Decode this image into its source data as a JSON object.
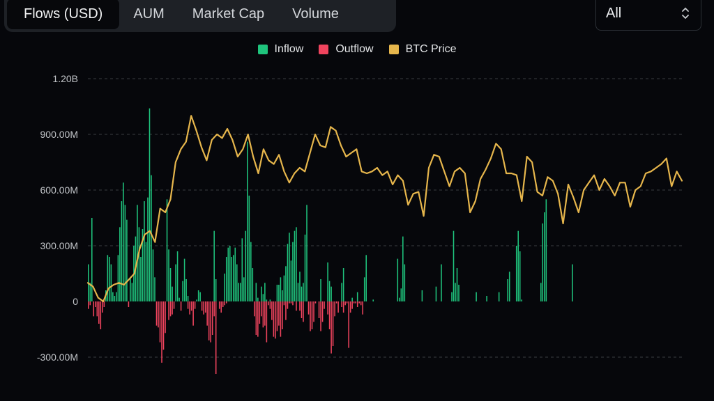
{
  "tabs": [
    {
      "label": "Flows (USD)",
      "active": true
    },
    {
      "label": "AUM",
      "active": false
    },
    {
      "label": "Market Cap",
      "active": false
    },
    {
      "label": "Volume",
      "active": false
    }
  ],
  "range_select": {
    "value": "All",
    "icon": "chevron-up-down-icon"
  },
  "colors": {
    "inflow": "#1fc47d",
    "outflow": "#f0445e",
    "price": "#e6b64c",
    "grid": "#3a3d42"
  },
  "chart_data": {
    "type": "bar",
    "legend": [
      "Inflow",
      "Outflow",
      "BTC Price"
    ],
    "legend_position": "top-center",
    "grid": true,
    "ylim": [
      -400000000,
      1200000000
    ],
    "y_ticks": [
      {
        "value": 1200000000,
        "label": "1.20B"
      },
      {
        "value": 900000000,
        "label": "900.00M"
      },
      {
        "value": 600000000,
        "label": "600.00M"
      },
      {
        "value": 300000000,
        "label": "300.00M"
      },
      {
        "value": 0,
        "label": "0"
      },
      {
        "value": -300000000,
        "label": "-300.00M"
      }
    ],
    "series": [
      {
        "name": "Inflow",
        "values": [
          200,
          100,
          450,
          0,
          0,
          0,
          0,
          0,
          0,
          0,
          60,
          250,
          240,
          200,
          50,
          30,
          50,
          250,
          400,
          540,
          640,
          520,
          440,
          0,
          130,
          100,
          300,
          350,
          520,
          400,
          240,
          390,
          540,
          320,
          560,
          1040,
          680,
          280,
          130,
          0,
          0,
          0,
          0,
          0,
          0,
          550,
          280,
          180,
          80,
          0,
          200,
          270,
          20,
          0,
          110,
          230,
          120,
          30,
          0,
          0,
          0,
          0,
          10,
          60,
          50,
          0,
          0,
          0,
          0,
          0,
          0,
          0,
          380,
          120,
          0,
          0,
          0,
          0,
          150,
          240,
          290,
          300,
          240,
          250,
          290,
          200,
          100,
          100,
          340,
          130,
          380,
          860,
          570,
          320,
          180,
          0,
          100,
          20,
          0,
          80,
          40,
          100,
          10,
          0,
          10,
          0,
          0,
          0,
          90,
          90,
          130,
          60,
          140,
          190,
          310,
          370,
          220,
          320,
          380,
          400,
          100,
          160,
          80,
          100,
          360,
          520,
          0,
          0,
          0,
          0,
          0,
          0,
          0,
          120,
          0,
          0,
          0,
          210,
          110,
          80,
          0,
          0,
          0,
          0,
          0,
          100,
          180,
          0,
          0,
          0,
          0,
          20,
          0,
          0,
          50,
          0,
          0,
          0,
          130,
          250,
          0,
          0,
          0,
          10,
          0,
          0,
          0,
          0,
          0,
          0,
          0,
          0,
          0,
          0,
          0,
          0,
          0,
          230,
          20,
          70,
          350,
          200,
          0,
          0,
          0,
          0,
          0,
          0,
          0,
          0,
          0,
          60,
          0,
          0,
          0,
          0,
          0,
          0,
          0,
          80,
          0,
          0,
          200,
          0,
          0,
          0,
          0,
          0,
          50,
          380,
          100,
          180,
          90,
          0,
          0,
          0,
          0,
          0,
          0,
          0,
          0,
          0,
          50,
          0,
          0,
          0,
          0,
          0,
          30,
          0,
          0,
          0,
          0,
          0,
          0,
          50,
          0,
          0,
          0,
          0,
          120,
          160,
          0,
          0,
          0,
          300,
          380,
          270,
          10,
          0,
          0,
          0,
          0,
          0,
          0,
          0,
          0,
          0,
          0,
          100,
          420,
          480,
          550,
          0,
          0,
          0,
          0,
          0,
          0,
          0,
          0,
          0,
          0,
          0,
          0,
          0,
          0,
          200,
          0,
          0,
          0,
          0,
          0,
          0,
          0,
          0,
          0,
          0,
          0,
          0,
          0,
          0,
          0,
          0,
          0,
          0,
          0,
          0,
          0,
          0,
          0,
          0,
          0,
          0,
          0,
          0,
          0,
          0,
          0,
          0,
          0,
          0,
          0,
          0,
          0,
          0,
          0,
          0,
          0,
          0,
          0,
          0,
          0,
          0,
          0,
          0,
          0,
          0,
          0,
          0,
          0,
          0,
          0,
          0,
          0,
          0,
          0,
          0,
          0,
          0
        ]
      },
      {
        "name": "Outflow",
        "values": [
          -40,
          -20,
          0,
          -80,
          -30,
          -80,
          -120,
          -150,
          -60,
          -30,
          0,
          0,
          0,
          0,
          0,
          0,
          0,
          0,
          0,
          0,
          0,
          0,
          0,
          -30,
          0,
          0,
          0,
          0,
          0,
          0,
          0,
          0,
          0,
          0,
          0,
          0,
          0,
          0,
          0,
          -130,
          -140,
          -220,
          -330,
          -260,
          -170,
          0,
          -100,
          -80,
          -70,
          -40,
          0,
          0,
          0,
          -50,
          0,
          0,
          0,
          -40,
          -70,
          -50,
          -130,
          -40,
          0,
          0,
          0,
          -50,
          -70,
          -60,
          -130,
          -210,
          -220,
          -180,
          -80,
          -390,
          0,
          -40,
          -60,
          -30,
          -20,
          -10,
          0,
          0,
          0,
          0,
          0,
          0,
          0,
          0,
          0,
          0,
          0,
          0,
          0,
          0,
          0,
          -80,
          -180,
          -190,
          -120,
          -80,
          -140,
          -130,
          -220,
          -20,
          -40,
          -100,
          -190,
          -200,
          -160,
          -130,
          -190,
          -150,
          -20,
          -100,
          -40,
          -10,
          -10,
          -20,
          0,
          -50,
          0,
          -50,
          -90,
          -110,
          0,
          0,
          -70,
          -160,
          -150,
          -110,
          -10,
          0,
          -90,
          -160,
          -110,
          -40,
          0,
          -70,
          -150,
          -280,
          -240,
          -80,
          -10,
          -60,
          0,
          -30,
          -60,
          -20,
          -10,
          -250,
          -60,
          -40,
          -10,
          -10,
          -30,
          -10,
          -20,
          -70,
          0,
          0,
          0,
          0,
          0,
          0,
          0,
          0,
          0,
          0,
          0,
          0,
          0,
          0,
          0,
          0,
          0,
          0,
          0,
          0,
          0,
          0,
          0,
          0,
          0,
          0,
          0,
          0,
          0,
          0,
          0,
          0,
          0,
          0,
          0,
          0,
          0,
          0,
          0,
          0,
          0,
          0,
          0,
          0,
          0,
          0,
          0,
          0,
          0,
          0,
          0,
          0,
          0,
          0,
          0,
          0,
          0,
          0,
          0,
          0,
          0,
          0,
          0,
          0,
          0,
          0,
          0,
          0,
          0,
          0,
          0,
          0,
          0,
          0,
          0,
          0,
          0,
          0,
          0,
          0,
          0,
          0,
          0,
          0,
          0,
          0,
          0,
          0,
          0,
          0,
          0,
          0,
          0,
          0,
          0,
          0,
          0,
          0,
          0,
          0,
          0,
          0,
          0,
          0,
          0,
          0,
          0,
          0,
          0,
          0,
          0,
          0,
          0,
          0,
          0,
          0,
          0,
          0,
          0,
          0,
          0,
          0,
          0,
          0,
          0,
          0,
          0,
          0,
          0,
          0,
          0,
          0,
          0,
          0,
          0,
          0,
          0,
          0,
          0,
          0,
          0,
          0,
          0,
          0,
          0,
          0,
          0,
          0,
          0,
          0,
          0,
          0,
          0,
          0,
          0,
          0,
          0,
          0,
          0,
          0,
          0,
          0,
          0,
          0,
          0,
          0,
          0,
          0,
          0,
          0,
          0,
          0,
          0,
          0,
          0,
          0,
          0,
          0,
          0,
          0,
          0,
          0,
          0,
          0,
          0,
          0,
          0,
          0,
          0,
          0,
          0,
          0,
          0,
          0,
          0,
          0,
          0,
          0,
          0,
          0,
          0
        ]
      },
      {
        "name": "BTC Price",
        "values": [
          100,
          80,
          20,
          0,
          70,
          90,
          100,
          90,
          120,
          150,
          280,
          360,
          380,
          320,
          500,
          480,
          550,
          750,
          820,
          860,
          1000,
          920,
          830,
          760,
          870,
          900,
          880,
          930,
          870,
          780,
          820,
          900,
          780,
          690,
          820,
          760,
          740,
          790,
          700,
          640,
          690,
          720,
          700,
          800,
          900,
          840,
          830,
          940,
          920,
          840,
          780,
          800,
          820,
          700,
          690,
          700,
          720,
          680,
          700,
          630,
          680,
          650,
          520,
          580,
          590,
          460,
          720,
          790,
          780,
          700,
          620,
          700,
          720,
          690,
          480,
          540,
          660,
          710,
          770,
          850,
          820,
          690,
          690,
          680,
          540,
          780,
          750,
          590,
          570,
          670,
          650,
          580,
          420,
          630,
          560,
          480,
          600,
          640,
          680,
          600,
          660,
          620,
          570,
          640,
          640,
          510,
          600,
          620,
          690,
          700,
          720,
          740,
          770,
          620,
          700,
          650
        ]
      }
    ]
  }
}
